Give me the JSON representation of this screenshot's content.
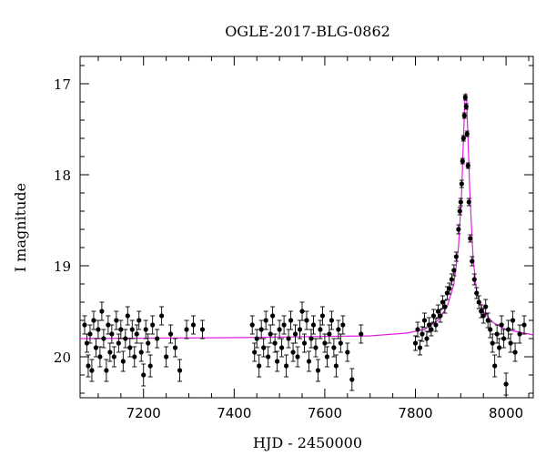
{
  "chart_data": {
    "type": "scatter",
    "title": "OGLE-2017-BLG-0862",
    "xlabel": "HJD - 2450000",
    "ylabel": "I magnitude",
    "xlim": [
      7060,
      8060
    ],
    "ylim": [
      20.45,
      16.7
    ],
    "y_axis_inverted": true,
    "xticks": [
      7200,
      7400,
      7600,
      7800,
      8000
    ],
    "yticks": [
      17,
      18,
      19,
      20
    ],
    "grid": false,
    "legend": "none",
    "colors": {
      "data": "#000000",
      "model": "#e020e0"
    },
    "model": {
      "name": "",
      "points": [
        {
          "x": 7060,
          "y": 19.8
        },
        {
          "x": 7400,
          "y": 19.79
        },
        {
          "x": 7700,
          "y": 19.77
        },
        {
          "x": 7780,
          "y": 19.74
        },
        {
          "x": 7820,
          "y": 19.7
        },
        {
          "x": 7850,
          "y": 19.6
        },
        {
          "x": 7870,
          "y": 19.45
        },
        {
          "x": 7885,
          "y": 19.2
        },
        {
          "x": 7895,
          "y": 18.8
        },
        {
          "x": 7902,
          "y": 18.2
        },
        {
          "x": 7906,
          "y": 17.6
        },
        {
          "x": 7909,
          "y": 17.2
        },
        {
          "x": 7911,
          "y": 17.1
        },
        {
          "x": 7913,
          "y": 17.2
        },
        {
          "x": 7916,
          "y": 17.6
        },
        {
          "x": 7920,
          "y": 18.2
        },
        {
          "x": 7927,
          "y": 18.9
        },
        {
          "x": 7935,
          "y": 19.3
        },
        {
          "x": 7950,
          "y": 19.5
        },
        {
          "x": 7970,
          "y": 19.62
        },
        {
          "x": 8000,
          "y": 19.7
        },
        {
          "x": 8060,
          "y": 19.76
        }
      ]
    },
    "series": [
      {
        "name": "",
        "points": [
          {
            "x": 7070,
            "y": 19.65,
            "err": 0.1
          },
          {
            "x": 7075,
            "y": 19.85,
            "err": 0.1
          },
          {
            "x": 7078,
            "y": 20.1,
            "err": 0.12
          },
          {
            "x": 7082,
            "y": 19.75,
            "err": 0.1
          },
          {
            "x": 7086,
            "y": 20.15,
            "err": 0.12
          },
          {
            "x": 7090,
            "y": 19.6,
            "err": 0.1
          },
          {
            "x": 7095,
            "y": 19.9,
            "err": 0.1
          },
          {
            "x": 7100,
            "y": 19.7,
            "err": 0.1
          },
          {
            "x": 7104,
            "y": 20.0,
            "err": 0.11
          },
          {
            "x": 7108,
            "y": 19.5,
            "err": 0.1
          },
          {
            "x": 7112,
            "y": 19.8,
            "err": 0.1
          },
          {
            "x": 7118,
            "y": 20.15,
            "err": 0.12
          },
          {
            "x": 7122,
            "y": 19.65,
            "err": 0.1
          },
          {
            "x": 7126,
            "y": 19.95,
            "err": 0.1
          },
          {
            "x": 7130,
            "y": 19.75,
            "err": 0.1
          },
          {
            "x": 7135,
            "y": 20.0,
            "err": 0.11
          },
          {
            "x": 7140,
            "y": 19.6,
            "err": 0.1
          },
          {
            "x": 7145,
            "y": 19.85,
            "err": 0.1
          },
          {
            "x": 7150,
            "y": 19.7,
            "err": 0.1
          },
          {
            "x": 7155,
            "y": 20.05,
            "err": 0.11
          },
          {
            "x": 7160,
            "y": 19.8,
            "err": 0.1
          },
          {
            "x": 7165,
            "y": 19.55,
            "err": 0.1
          },
          {
            "x": 7170,
            "y": 19.9,
            "err": 0.1
          },
          {
            "x": 7175,
            "y": 19.7,
            "err": 0.1
          },
          {
            "x": 7180,
            "y": 20.0,
            "err": 0.11
          },
          {
            "x": 7185,
            "y": 19.75,
            "err": 0.1
          },
          {
            "x": 7190,
            "y": 19.6,
            "err": 0.1
          },
          {
            "x": 7195,
            "y": 19.95,
            "err": 0.1
          },
          {
            "x": 7200,
            "y": 20.2,
            "err": 0.12
          },
          {
            "x": 7205,
            "y": 19.7,
            "err": 0.1
          },
          {
            "x": 7210,
            "y": 19.85,
            "err": 0.1
          },
          {
            "x": 7215,
            "y": 20.1,
            "err": 0.12
          },
          {
            "x": 7220,
            "y": 19.65,
            "err": 0.1
          },
          {
            "x": 7230,
            "y": 19.8,
            "err": 0.1
          },
          {
            "x": 7240,
            "y": 19.55,
            "err": 0.1
          },
          {
            "x": 7250,
            "y": 20.0,
            "err": 0.11
          },
          {
            "x": 7260,
            "y": 19.75,
            "err": 0.1
          },
          {
            "x": 7270,
            "y": 19.9,
            "err": 0.1
          },
          {
            "x": 7280,
            "y": 20.15,
            "err": 0.12
          },
          {
            "x": 7295,
            "y": 19.7,
            "err": 0.1
          },
          {
            "x": 7310,
            "y": 19.65,
            "err": 0.1
          },
          {
            "x": 7330,
            "y": 19.7,
            "err": 0.1
          },
          {
            "x": 7440,
            "y": 19.65,
            "err": 0.1
          },
          {
            "x": 7445,
            "y": 19.95,
            "err": 0.1
          },
          {
            "x": 7450,
            "y": 19.8,
            "err": 0.1
          },
          {
            "x": 7455,
            "y": 20.1,
            "err": 0.12
          },
          {
            "x": 7460,
            "y": 19.7,
            "err": 0.1
          },
          {
            "x": 7465,
            "y": 19.9,
            "err": 0.1
          },
          {
            "x": 7470,
            "y": 19.6,
            "err": 0.1
          },
          {
            "x": 7475,
            "y": 20.0,
            "err": 0.11
          },
          {
            "x": 7480,
            "y": 19.75,
            "err": 0.1
          },
          {
            "x": 7485,
            "y": 19.55,
            "err": 0.1
          },
          {
            "x": 7490,
            "y": 19.85,
            "err": 0.1
          },
          {
            "x": 7495,
            "y": 20.05,
            "err": 0.11
          },
          {
            "x": 7500,
            "y": 19.7,
            "err": 0.1
          },
          {
            "x": 7505,
            "y": 19.9,
            "err": 0.1
          },
          {
            "x": 7510,
            "y": 19.65,
            "err": 0.1
          },
          {
            "x": 7515,
            "y": 20.1,
            "err": 0.12
          },
          {
            "x": 7520,
            "y": 19.8,
            "err": 0.1
          },
          {
            "x": 7525,
            "y": 19.6,
            "err": 0.1
          },
          {
            "x": 7530,
            "y": 19.95,
            "err": 0.1
          },
          {
            "x": 7535,
            "y": 19.75,
            "err": 0.1
          },
          {
            "x": 7540,
            "y": 20.0,
            "err": 0.11
          },
          {
            "x": 7545,
            "y": 19.7,
            "err": 0.1
          },
          {
            "x": 7550,
            "y": 19.5,
            "err": 0.1
          },
          {
            "x": 7555,
            "y": 19.85,
            "err": 0.1
          },
          {
            "x": 7560,
            "y": 19.6,
            "err": 0.1
          },
          {
            "x": 7565,
            "y": 20.05,
            "err": 0.11
          },
          {
            "x": 7570,
            "y": 19.8,
            "err": 0.1
          },
          {
            "x": 7575,
            "y": 19.65,
            "err": 0.1
          },
          {
            "x": 7580,
            "y": 19.9,
            "err": 0.1
          },
          {
            "x": 7585,
            "y": 20.15,
            "err": 0.12
          },
          {
            "x": 7590,
            "y": 19.7,
            "err": 0.1
          },
          {
            "x": 7595,
            "y": 19.55,
            "err": 0.1
          },
          {
            "x": 7600,
            "y": 19.85,
            "err": 0.1
          },
          {
            "x": 7605,
            "y": 20.0,
            "err": 0.11
          },
          {
            "x": 7610,
            "y": 19.75,
            "err": 0.1
          },
          {
            "x": 7615,
            "y": 19.6,
            "err": 0.1
          },
          {
            "x": 7620,
            "y": 19.9,
            "err": 0.1
          },
          {
            "x": 7625,
            "y": 20.1,
            "err": 0.12
          },
          {
            "x": 7630,
            "y": 19.7,
            "err": 0.1
          },
          {
            "x": 7635,
            "y": 19.85,
            "err": 0.1
          },
          {
            "x": 7640,
            "y": 19.65,
            "err": 0.1
          },
          {
            "x": 7650,
            "y": 19.95,
            "err": 0.1
          },
          {
            "x": 7660,
            "y": 20.25,
            "err": 0.12
          },
          {
            "x": 7680,
            "y": 19.75,
            "err": 0.1
          },
          {
            "x": 7800,
            "y": 19.85,
            "err": 0.08
          },
          {
            "x": 7805,
            "y": 19.7,
            "err": 0.08
          },
          {
            "x": 7810,
            "y": 19.9,
            "err": 0.08
          },
          {
            "x": 7815,
            "y": 19.75,
            "err": 0.08
          },
          {
            "x": 7820,
            "y": 19.6,
            "err": 0.08
          },
          {
            "x": 7825,
            "y": 19.8,
            "err": 0.08
          },
          {
            "x": 7830,
            "y": 19.65,
            "err": 0.08
          },
          {
            "x": 7835,
            "y": 19.7,
            "err": 0.07
          },
          {
            "x": 7840,
            "y": 19.55,
            "err": 0.07
          },
          {
            "x": 7845,
            "y": 19.65,
            "err": 0.07
          },
          {
            "x": 7850,
            "y": 19.5,
            "err": 0.07
          },
          {
            "x": 7855,
            "y": 19.55,
            "err": 0.07
          },
          {
            "x": 7860,
            "y": 19.4,
            "err": 0.07
          },
          {
            "x": 7865,
            "y": 19.45,
            "err": 0.07
          },
          {
            "x": 7870,
            "y": 19.3,
            "err": 0.07
          },
          {
            "x": 7875,
            "y": 19.25,
            "err": 0.06
          },
          {
            "x": 7880,
            "y": 19.15,
            "err": 0.06
          },
          {
            "x": 7885,
            "y": 19.05,
            "err": 0.06
          },
          {
            "x": 7890,
            "y": 18.9,
            "err": 0.05
          },
          {
            "x": 7895,
            "y": 18.6,
            "err": 0.05
          },
          {
            "x": 7898,
            "y": 18.4,
            "err": 0.04
          },
          {
            "x": 7900,
            "y": 18.3,
            "err": 0.04
          },
          {
            "x": 7902,
            "y": 18.1,
            "err": 0.04
          },
          {
            "x": 7904,
            "y": 17.85,
            "err": 0.03
          },
          {
            "x": 7906,
            "y": 17.6,
            "err": 0.03
          },
          {
            "x": 7908,
            "y": 17.35,
            "err": 0.03
          },
          {
            "x": 7910,
            "y": 17.15,
            "err": 0.03
          },
          {
            "x": 7912,
            "y": 17.25,
            "err": 0.03
          },
          {
            "x": 7914,
            "y": 17.55,
            "err": 0.03
          },
          {
            "x": 7916,
            "y": 17.9,
            "err": 0.03
          },
          {
            "x": 7918,
            "y": 18.3,
            "err": 0.04
          },
          {
            "x": 7921,
            "y": 18.7,
            "err": 0.04
          },
          {
            "x": 7925,
            "y": 18.95,
            "err": 0.05
          },
          {
            "x": 7930,
            "y": 19.15,
            "err": 0.06
          },
          {
            "x": 7935,
            "y": 19.3,
            "err": 0.06
          },
          {
            "x": 7940,
            "y": 19.4,
            "err": 0.07
          },
          {
            "x": 7945,
            "y": 19.5,
            "err": 0.07
          },
          {
            "x": 7950,
            "y": 19.55,
            "err": 0.08
          },
          {
            "x": 7955,
            "y": 19.45,
            "err": 0.08
          },
          {
            "x": 7960,
            "y": 19.6,
            "err": 0.08
          },
          {
            "x": 7965,
            "y": 19.7,
            "err": 0.09
          },
          {
            "x": 7970,
            "y": 19.85,
            "err": 0.1
          },
          {
            "x": 7975,
            "y": 20.1,
            "err": 0.12
          },
          {
            "x": 7980,
            "y": 19.75,
            "err": 0.1
          },
          {
            "x": 7985,
            "y": 19.9,
            "err": 0.1
          },
          {
            "x": 7990,
            "y": 19.65,
            "err": 0.1
          },
          {
            "x": 7995,
            "y": 19.8,
            "err": 0.1
          },
          {
            "x": 8000,
            "y": 20.3,
            "err": 0.12
          },
          {
            "x": 8005,
            "y": 19.7,
            "err": 0.1
          },
          {
            "x": 8010,
            "y": 19.85,
            "err": 0.1
          },
          {
            "x": 8015,
            "y": 19.6,
            "err": 0.1
          },
          {
            "x": 8020,
            "y": 19.95,
            "err": 0.1
          },
          {
            "x": 8030,
            "y": 19.75,
            "err": 0.1
          },
          {
            "x": 8040,
            "y": 19.65,
            "err": 0.1
          }
        ]
      }
    ]
  }
}
